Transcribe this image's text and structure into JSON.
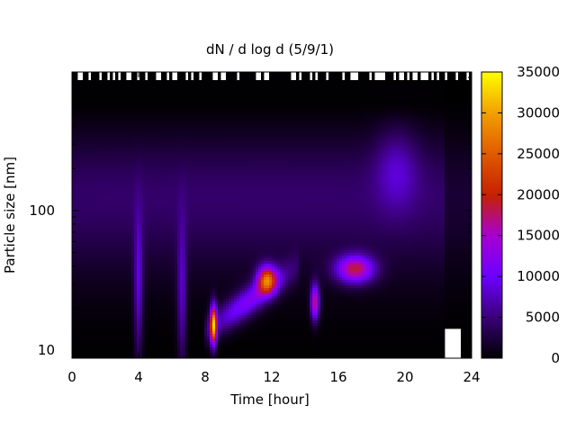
{
  "chart_data": {
    "type": "heatmap",
    "title": "dN / d log d (5/9/1)",
    "xlabel": "Time [hour]",
    "ylabel": "Particle size [nm]",
    "xlim": [
      0,
      24
    ],
    "x_ticks": [
      "0",
      "4",
      "8",
      "12",
      "16",
      "20",
      "24"
    ],
    "ylim_nm": [
      9,
      950
    ],
    "y_scale": "log",
    "y_ticks": [
      "10",
      "100"
    ],
    "colorbar": {
      "min": 0,
      "max": 35000,
      "ticks": [
        "0",
        "5000",
        "10000",
        "15000",
        "20000",
        "25000",
        "30000",
        "35000"
      ],
      "palette": "gnuplot (black-purple-red-orange-yellow)"
    },
    "background_level": 3000,
    "features": [
      {
        "description": "dense mid-size band",
        "time_start": 0,
        "time_end": 24,
        "size_center_nm": 150,
        "peak_value": 6000
      },
      {
        "description": "vertical streak",
        "time_center": 4.0,
        "size_center_nm": 28,
        "peak_value": 8000
      },
      {
        "description": "vertical streak",
        "time_center": 6.6,
        "size_center_nm": 25,
        "peak_value": 7000
      },
      {
        "description": "growth event",
        "time_start": 8.5,
        "time_end": 12.5,
        "size_start_nm": 15,
        "size_end_nm": 32,
        "peak_value": 23000
      },
      {
        "description": "hot spot",
        "time_center": 8.5,
        "size_center_nm": 15,
        "peak_value": 28000
      },
      {
        "description": "hot spot",
        "time_center": 11.7,
        "size_center_nm": 32,
        "peak_value": 21000
      },
      {
        "description": "hot spot",
        "time_center": 14.6,
        "size_center_nm": 22,
        "peak_value": 17000
      },
      {
        "description": "broad mode",
        "time_start": 16,
        "time_end": 18,
        "size_center_nm": 38,
        "peak_value": 17000
      },
      {
        "description": "faint mode",
        "time_center": 19.5,
        "size_center_nm": 200,
        "peak_value": 5000
      }
    ],
    "missing_data": [
      {
        "description": "top edge gaps",
        "time_start": 0,
        "time_end": 24,
        "size_above_nm": 850
      },
      {
        "description": "late evening gap",
        "time_start": 22.4,
        "time_end": 23.3,
        "size_below_nm": 14
      }
    ]
  }
}
